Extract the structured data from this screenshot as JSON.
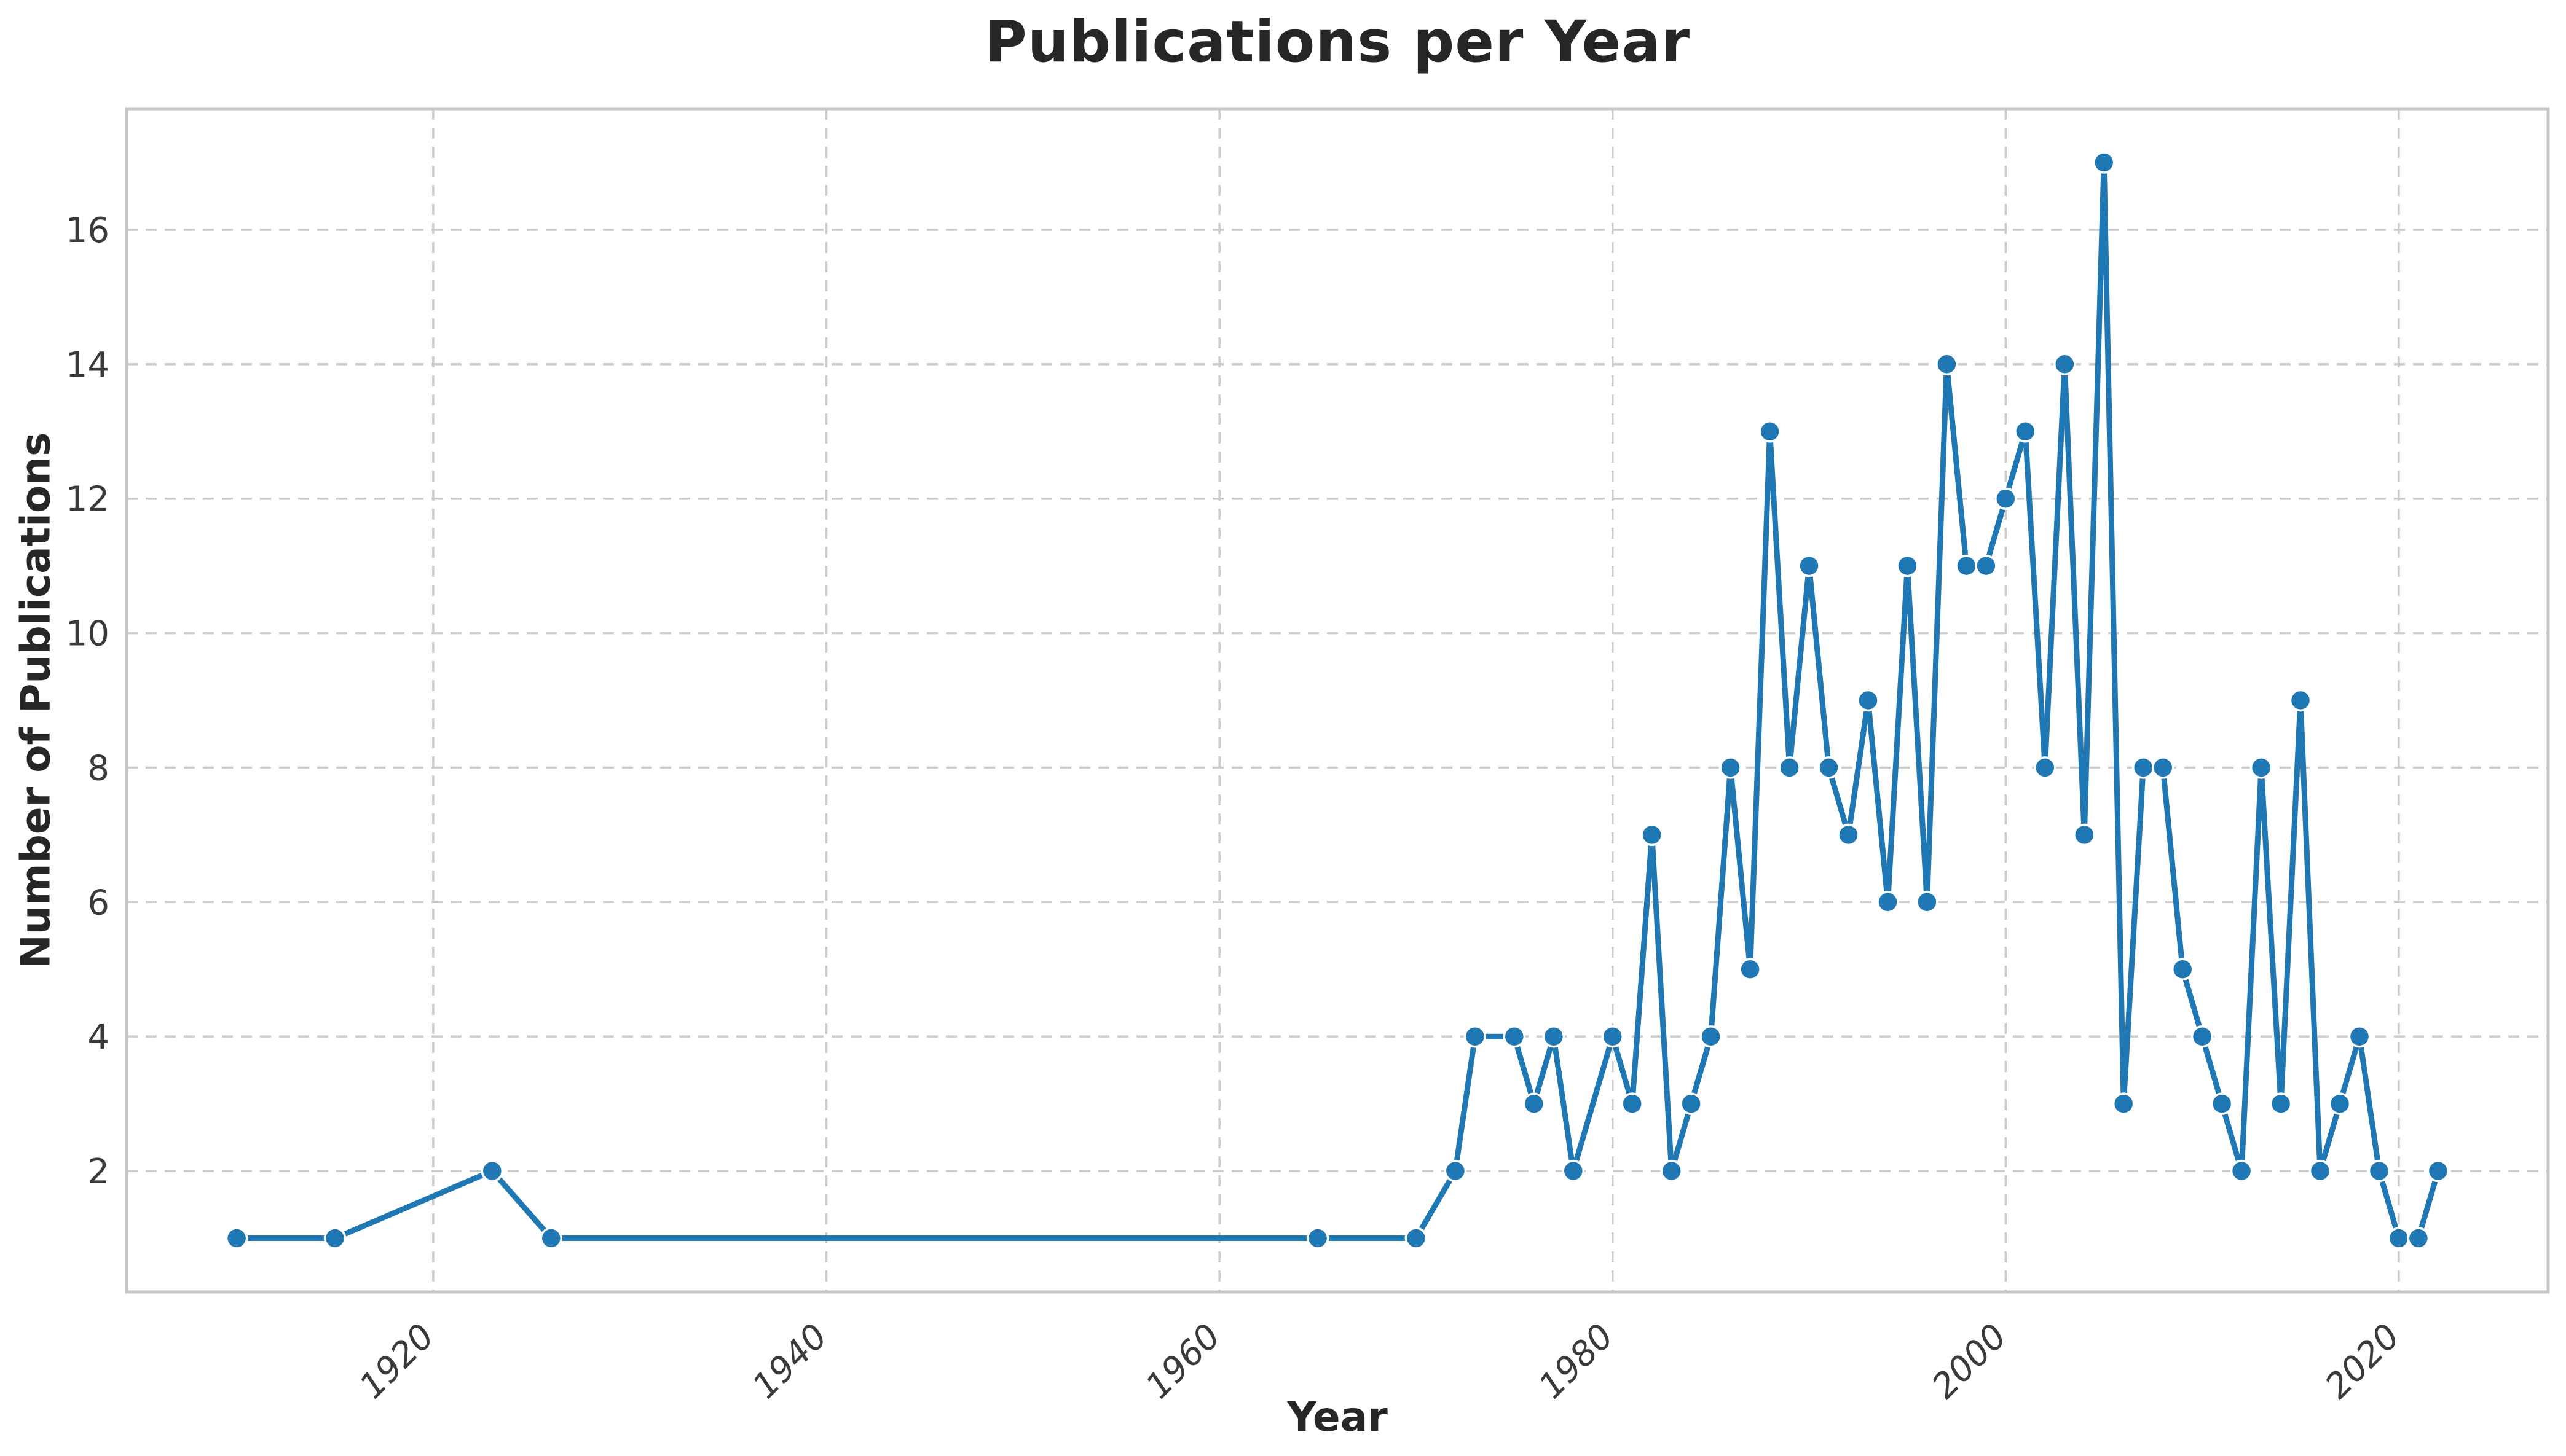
{
  "page": {
    "background": "#ffffff"
  },
  "chart_data": {
    "type": "line",
    "title": "Publications per Year",
    "xlabel": "Year",
    "ylabel": "Number of Publications",
    "x": [
      1910,
      1915,
      1923,
      1926,
      1965,
      1970,
      1972,
      1973,
      1975,
      1976,
      1977,
      1978,
      1980,
      1981,
      1982,
      1983,
      1984,
      1985,
      1986,
      1987,
      1988,
      1989,
      1990,
      1991,
      1992,
      1993,
      1994,
      1995,
      1996,
      1997,
      1998,
      1999,
      2000,
      2001,
      2002,
      2003,
      2004,
      2005,
      2006,
      2007,
      2008,
      2009,
      2010,
      2011,
      2012,
      2013,
      2014,
      2015,
      2016,
      2017,
      2018,
      2019,
      2020,
      2021,
      2022
    ],
    "values": [
      1,
      1,
      2,
      1,
      1,
      1,
      2,
      4,
      4,
      3,
      4,
      2,
      4,
      3,
      7,
      2,
      3,
      4,
      8,
      5,
      13,
      8,
      11,
      8,
      7,
      9,
      6,
      11,
      6,
      14,
      11,
      11,
      12,
      13,
      8,
      14,
      7,
      17,
      3,
      8,
      8,
      5,
      4,
      3,
      2,
      8,
      3,
      9,
      2,
      3,
      4,
      2,
      1,
      1,
      2
    ],
    "xticks": [
      1920,
      1940,
      1960,
      1980,
      2000,
      2020
    ],
    "yticks": [
      2,
      4,
      6,
      8,
      10,
      12,
      14,
      16
    ],
    "xlim": [
      1904.4,
      2027.6
    ],
    "ylim": [
      0.2,
      17.8
    ],
    "grid": "dashed",
    "legend_position": "none",
    "line_color": "#1f77b4",
    "marker": "circle",
    "marker_edge_color": "#ffffff",
    "grid_color": "#cccccc",
    "spine_color": "#c6c6c6",
    "tick_label_color": "#3a3a3a",
    "text_color": "#262626"
  }
}
